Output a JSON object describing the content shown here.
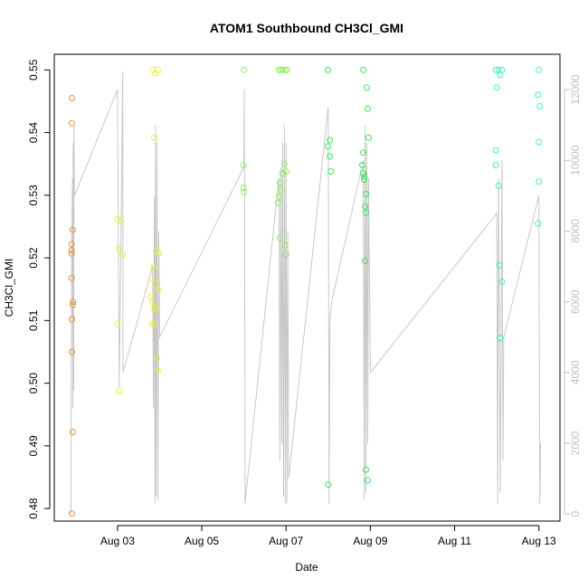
{
  "chart_data": {
    "type": "scatter",
    "title": "ATOM1 Southbound CH3Cl_GMI",
    "xlabel": "Date",
    "ylabel": "CH3Cl_GMI",
    "y2label": "",
    "ylim": [
      0.478,
      0.5525
    ],
    "y2lim": [
      -200,
      13000
    ],
    "xlim": [
      "Aug 01 12:00",
      "Aug 13 12:00"
    ],
    "x_ticks": [
      "Aug 03",
      "Aug 05",
      "Aug 07",
      "Aug 09",
      "Aug 11",
      "Aug 13"
    ],
    "y_ticks": [
      "0.48",
      "0.49",
      "0.50",
      "0.51",
      "0.52",
      "0.53",
      "0.54",
      "0.55"
    ],
    "y2_ticks": [
      "0",
      "2000",
      "4000",
      "6000",
      "8000",
      "10000",
      "12000"
    ],
    "grid": false,
    "colors": {
      "aug01": "#e8923a",
      "aug03": "#e8ee3a",
      "aug06": "#8ef05a",
      "aug08": "#3fe05a",
      "aug12": "#3ef0c0",
      "altitude_line": "#c8c8c8",
      "axis": "#000000",
      "right_axis": "#c0c0c0"
    },
    "series": [
      {
        "color_key": "aug01",
        "points": [
          [
            "Aug 01 22:00",
            0.5455
          ],
          [
            "Aug 01 22:00",
            0.5415
          ],
          [
            "Aug 01 21:50",
            0.5222
          ],
          [
            "Aug 01 21:50",
            0.5212
          ],
          [
            "Aug 01 21:55",
            0.5207
          ],
          [
            "Aug 01 21:55",
            0.5168
          ],
          [
            "Aug 01 22:05",
            0.5102
          ],
          [
            "Aug 01 22:05",
            0.505
          ],
          [
            "Aug 01 22:00",
            0.4792
          ],
          [
            "Aug 01 22:30",
            0.5245
          ],
          [
            "Aug 01 22:40",
            0.513
          ],
          [
            "Aug 01 22:35",
            0.5125
          ],
          [
            "Aug 01 22:30",
            0.4922
          ]
        ]
      },
      {
        "color_key": "aug03",
        "points": [
          [
            "Aug 03 00:00",
            0.5262
          ],
          [
            "Aug 03 02:00",
            0.5258
          ],
          [
            "Aug 03 01:00",
            0.5215
          ],
          [
            "Aug 03 03:00",
            0.5205
          ],
          [
            "Aug 03 00:00",
            0.5095
          ],
          [
            "Aug 03 01:00",
            0.4988
          ],
          [
            "Aug 03 20:00",
            0.55
          ],
          [
            "Aug 03 21:30",
            0.5495
          ],
          [
            "Aug 03 23:00",
            0.55
          ],
          [
            "Aug 03 21:00",
            0.5392
          ],
          [
            "Aug 03 23:30",
            0.5208
          ],
          [
            "Aug 03 22:00",
            0.521
          ],
          [
            "Aug 03 19:30",
            0.5168
          ],
          [
            "Aug 03 20:30",
            0.5185
          ],
          [
            "Aug 03 21:30",
            0.5158
          ],
          [
            "Aug 03 23:00",
            0.5148
          ],
          [
            "Aug 03 19:00",
            0.5138
          ],
          [
            "Aug 03 20:00",
            0.513
          ],
          [
            "Aug 03 21:00",
            0.512
          ],
          [
            "Aug 03 22:30",
            0.5118
          ],
          [
            "Aug 03 19:30",
            0.5095
          ],
          [
            "Aug 03 21:00",
            0.5095
          ],
          [
            "Aug 03 22:30",
            0.504
          ],
          [
            "Aug 03 23:00",
            0.502
          ]
        ]
      },
      {
        "color_key": "aug06",
        "points": [
          [
            "Aug 06 00:00",
            0.55
          ],
          [
            "Aug 05 23:50",
            0.5348
          ],
          [
            "Aug 05 23:50",
            0.5312
          ],
          [
            "Aug 06 00:10",
            0.5305
          ],
          [
            "Aug 06 20:00",
            0.55
          ],
          [
            "Aug 06 21:00",
            0.55
          ],
          [
            "Aug 06 22:00",
            0.55
          ],
          [
            "Aug 06 23:30",
            0.55
          ],
          [
            "Aug 07 00:30",
            0.55
          ],
          [
            "Aug 06 23:00",
            0.535
          ],
          [
            "Aug 07 00:00",
            0.5338
          ],
          [
            "Aug 06 22:00",
            0.5335
          ],
          [
            "Aug 06 20:30",
            0.532
          ],
          [
            "Aug 06 21:00",
            0.5308
          ],
          [
            "Aug 06 20:00",
            0.5298
          ],
          [
            "Aug 06 19:30",
            0.5288
          ],
          [
            "Aug 06 20:30",
            0.5232
          ],
          [
            "Aug 06 23:30",
            0.522
          ],
          [
            "Aug 07 00:00",
            0.5205
          ]
        ]
      },
      {
        "color_key": "aug08",
        "points": [
          [
            "Aug 07 23:50",
            0.55
          ],
          [
            "Aug 08 01:00",
            0.5388
          ],
          [
            "Aug 07 23:50",
            0.5378
          ],
          [
            "Aug 08 01:00",
            0.5362
          ],
          [
            "Aug 08 01:30",
            0.5338
          ],
          [
            "Aug 08 00:00",
            0.4838
          ],
          [
            "Aug 08 20:00",
            0.55
          ],
          [
            "Aug 08 22:00",
            0.5472
          ],
          [
            "Aug 08 22:30",
            0.5438
          ],
          [
            "Aug 08 23:00",
            0.5392
          ],
          [
            "Aug 08 20:00",
            0.5368
          ],
          [
            "Aug 08 19:30",
            0.5348
          ],
          [
            "Aug 08 20:00",
            0.5335
          ],
          [
            "Aug 08 20:30",
            0.533
          ],
          [
            "Aug 08 20:30",
            0.5325
          ],
          [
            "Aug 08 21:30",
            0.5302
          ],
          [
            "Aug 08 21:00",
            0.5282
          ],
          [
            "Aug 08 21:30",
            0.5272
          ],
          [
            "Aug 08 21:00",
            0.5195
          ],
          [
            "Aug 08 21:30",
            0.4862
          ],
          [
            "Aug 08 22:30",
            0.4845
          ]
        ]
      },
      {
        "color_key": "aug12",
        "points": [
          [
            "Aug 11 23:30",
            0.55
          ],
          [
            "Aug 12 01:00",
            0.55
          ],
          [
            "Aug 12 03:00",
            0.55
          ],
          [
            "Aug 12 02:00",
            0.5492
          ],
          [
            "Aug 12 00:00",
            0.5472
          ],
          [
            "Aug 11 23:30",
            0.5372
          ],
          [
            "Aug 11 23:30",
            0.5348
          ],
          [
            "Aug 12 01:00",
            0.5315
          ],
          [
            "Aug 12 01:30",
            0.5188
          ],
          [
            "Aug 12 03:00",
            0.5162
          ],
          [
            "Aug 12 02:00",
            0.5072
          ],
          [
            "Aug 13 00:00",
            0.55
          ],
          [
            "Aug 12 23:30",
            0.546
          ],
          [
            "Aug 13 00:30",
            0.5442
          ],
          [
            "Aug 13 00:00",
            0.5385
          ],
          [
            "Aug 13 00:00",
            0.5322
          ],
          [
            "Aug 12 23:30",
            0.5255
          ]
        ]
      }
    ],
    "altitude_line": {
      "axis": "right",
      "points": [
        [
          "Aug 01 21:30",
          0
        ],
        [
          "Aug 01 21:45",
          5000
        ],
        [
          "Aug 01 22:00",
          8000
        ],
        [
          "Aug 01 22:20",
          9500
        ],
        [
          "Aug 01 22:35",
          3000
        ],
        [
          "Aug 01 22:45",
          10500
        ],
        [
          "Aug 01 23:00",
          3500
        ],
        [
          "Aug 01 23:15",
          11000
        ],
        [
          "Aug 01 23:30",
          9000
        ],
        [
          "Aug 03 00:00",
          12000
        ],
        [
          "Aug 03 01:00",
          3600
        ],
        [
          "Aug 03 02:00",
          8000
        ],
        [
          "Aug 03 03:00",
          12500
        ],
        [
          "Aug 03 03:10",
          4000
        ],
        [
          "Aug 03 20:00",
          7000
        ],
        [
          "Aug 03 20:30",
          3000
        ],
        [
          "Aug 03 21:00",
          9000
        ],
        [
          "Aug 03 21:20",
          300
        ],
        [
          "Aug 03 21:40",
          11000
        ],
        [
          "Aug 03 22:00",
          500
        ],
        [
          "Aug 03 22:30",
          10500
        ],
        [
          "Aug 03 23:00",
          400
        ],
        [
          "Aug 03 23:30",
          8000
        ],
        [
          "Aug 04 00:00",
          5000
        ],
        [
          "Aug 06 00:00",
          9800
        ],
        [
          "Aug 06 00:15",
          12000
        ],
        [
          "Aug 06 00:30",
          6000
        ],
        [
          "Aug 06 00:40",
          300
        ],
        [
          "Aug 06 20:00",
          9500
        ],
        [
          "Aug 06 20:30",
          1500
        ],
        [
          "Aug 06 21:00",
          9800
        ],
        [
          "Aug 06 21:30",
          2000
        ],
        [
          "Aug 06 22:00",
          10500
        ],
        [
          "Aug 06 22:30",
          500
        ],
        [
          "Aug 06 23:00",
          11000
        ],
        [
          "Aug 06 23:30",
          300
        ],
        [
          "Aug 07 00:00",
          10500
        ],
        [
          "Aug 07 00:30",
          300
        ],
        [
          "Aug 07 01:00",
          8000
        ],
        [
          "Aug 07 01:30",
          1000
        ],
        [
          "Aug 08 00:00",
          11500
        ],
        [
          "Aug 08 00:30",
          300
        ],
        [
          "Aug 08 01:00",
          5500
        ],
        [
          "Aug 08 02:00",
          6000
        ],
        [
          "Aug 08 20:00",
          10000
        ],
        [
          "Aug 08 20:30",
          400
        ],
        [
          "Aug 08 21:00",
          11000
        ],
        [
          "Aug 08 21:30",
          600
        ],
        [
          "Aug 08 22:00",
          10500
        ],
        [
          "Aug 08 22:30",
          2000
        ],
        [
          "Aug 08 23:00",
          9500
        ],
        [
          "Aug 09 00:00",
          4000
        ],
        [
          "Aug 12 00:00",
          8500
        ],
        [
          "Aug 12 00:30",
          300
        ],
        [
          "Aug 12 01:00",
          9500
        ],
        [
          "Aug 12 02:00",
          600
        ],
        [
          "Aug 12 03:00",
          10000
        ],
        [
          "Aug 12 03:30",
          1500
        ],
        [
          "Aug 12 04:00",
          5000
        ],
        [
          "Aug 13 00:00",
          9000
        ],
        [
          "Aug 13 00:30",
          300
        ],
        [
          "Aug 13 01:00",
          2000
        ]
      ]
    }
  }
}
